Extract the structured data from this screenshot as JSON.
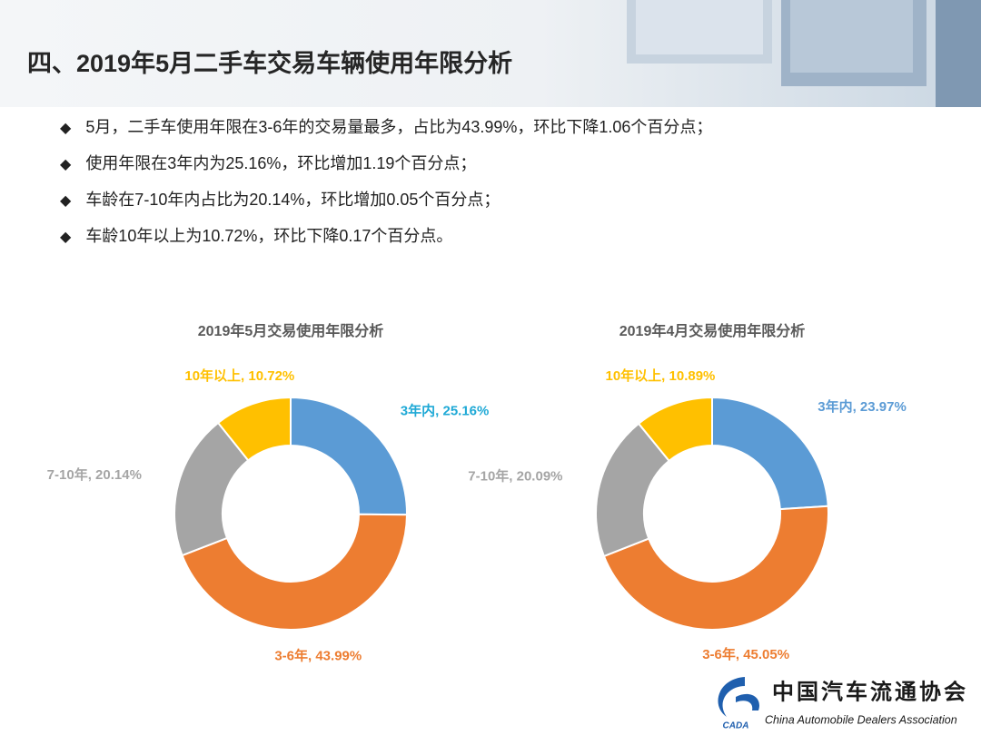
{
  "header": {
    "title": "四、2019年5月二手车交易车辆使用年限分析"
  },
  "bullets": [
    "5月，二手车使用年限在3-6年的交易量最多，占比为43.99%，环比下降1.06个百分点；",
    "使用年限在3年内为25.16%，环比增加1.19个百分点；",
    "车龄在7-10年内占比为20.14%，环比增加0.05个百分点；",
    "车龄10年以上为10.72%，环比下降0.17个百分点。"
  ],
  "chart_data": [
    {
      "type": "pie",
      "title": "2019年5月交易使用年限分析",
      "donut": true,
      "values": [
        25.16,
        43.99,
        20.14,
        10.72
      ],
      "value_labels": [
        "3年内, 25.16%",
        "3-6年, 43.99%",
        "7-10年, 20.14%",
        "10年以上, 10.72%"
      ],
      "colors": [
        "#5b9bd5",
        "#ed7d31",
        "#a5a5a5",
        "#ffc000"
      ],
      "label_colors": [
        "#1fa9d6",
        "#ed7d31",
        "#a5a5a5",
        "#ffc000"
      ]
    },
    {
      "type": "pie",
      "title": "2019年4月交易使用年限分析",
      "donut": true,
      "values": [
        23.97,
        45.05,
        20.09,
        10.89
      ],
      "value_labels": [
        "3年内, 23.97%",
        "3-6年, 45.05%",
        "7-10年, 20.09%",
        "10年以上, 10.89%"
      ],
      "colors": [
        "#5b9bd5",
        "#ed7d31",
        "#a5a5a5",
        "#ffc000"
      ],
      "label_colors": [
        "#5b9bd5",
        "#ed7d31",
        "#a5a5a5",
        "#ffc000"
      ]
    }
  ],
  "logo": {
    "mark": "CADA",
    "name_cn": "中国汽车流通协会",
    "name_en": "China Automobile Dealers Association"
  }
}
